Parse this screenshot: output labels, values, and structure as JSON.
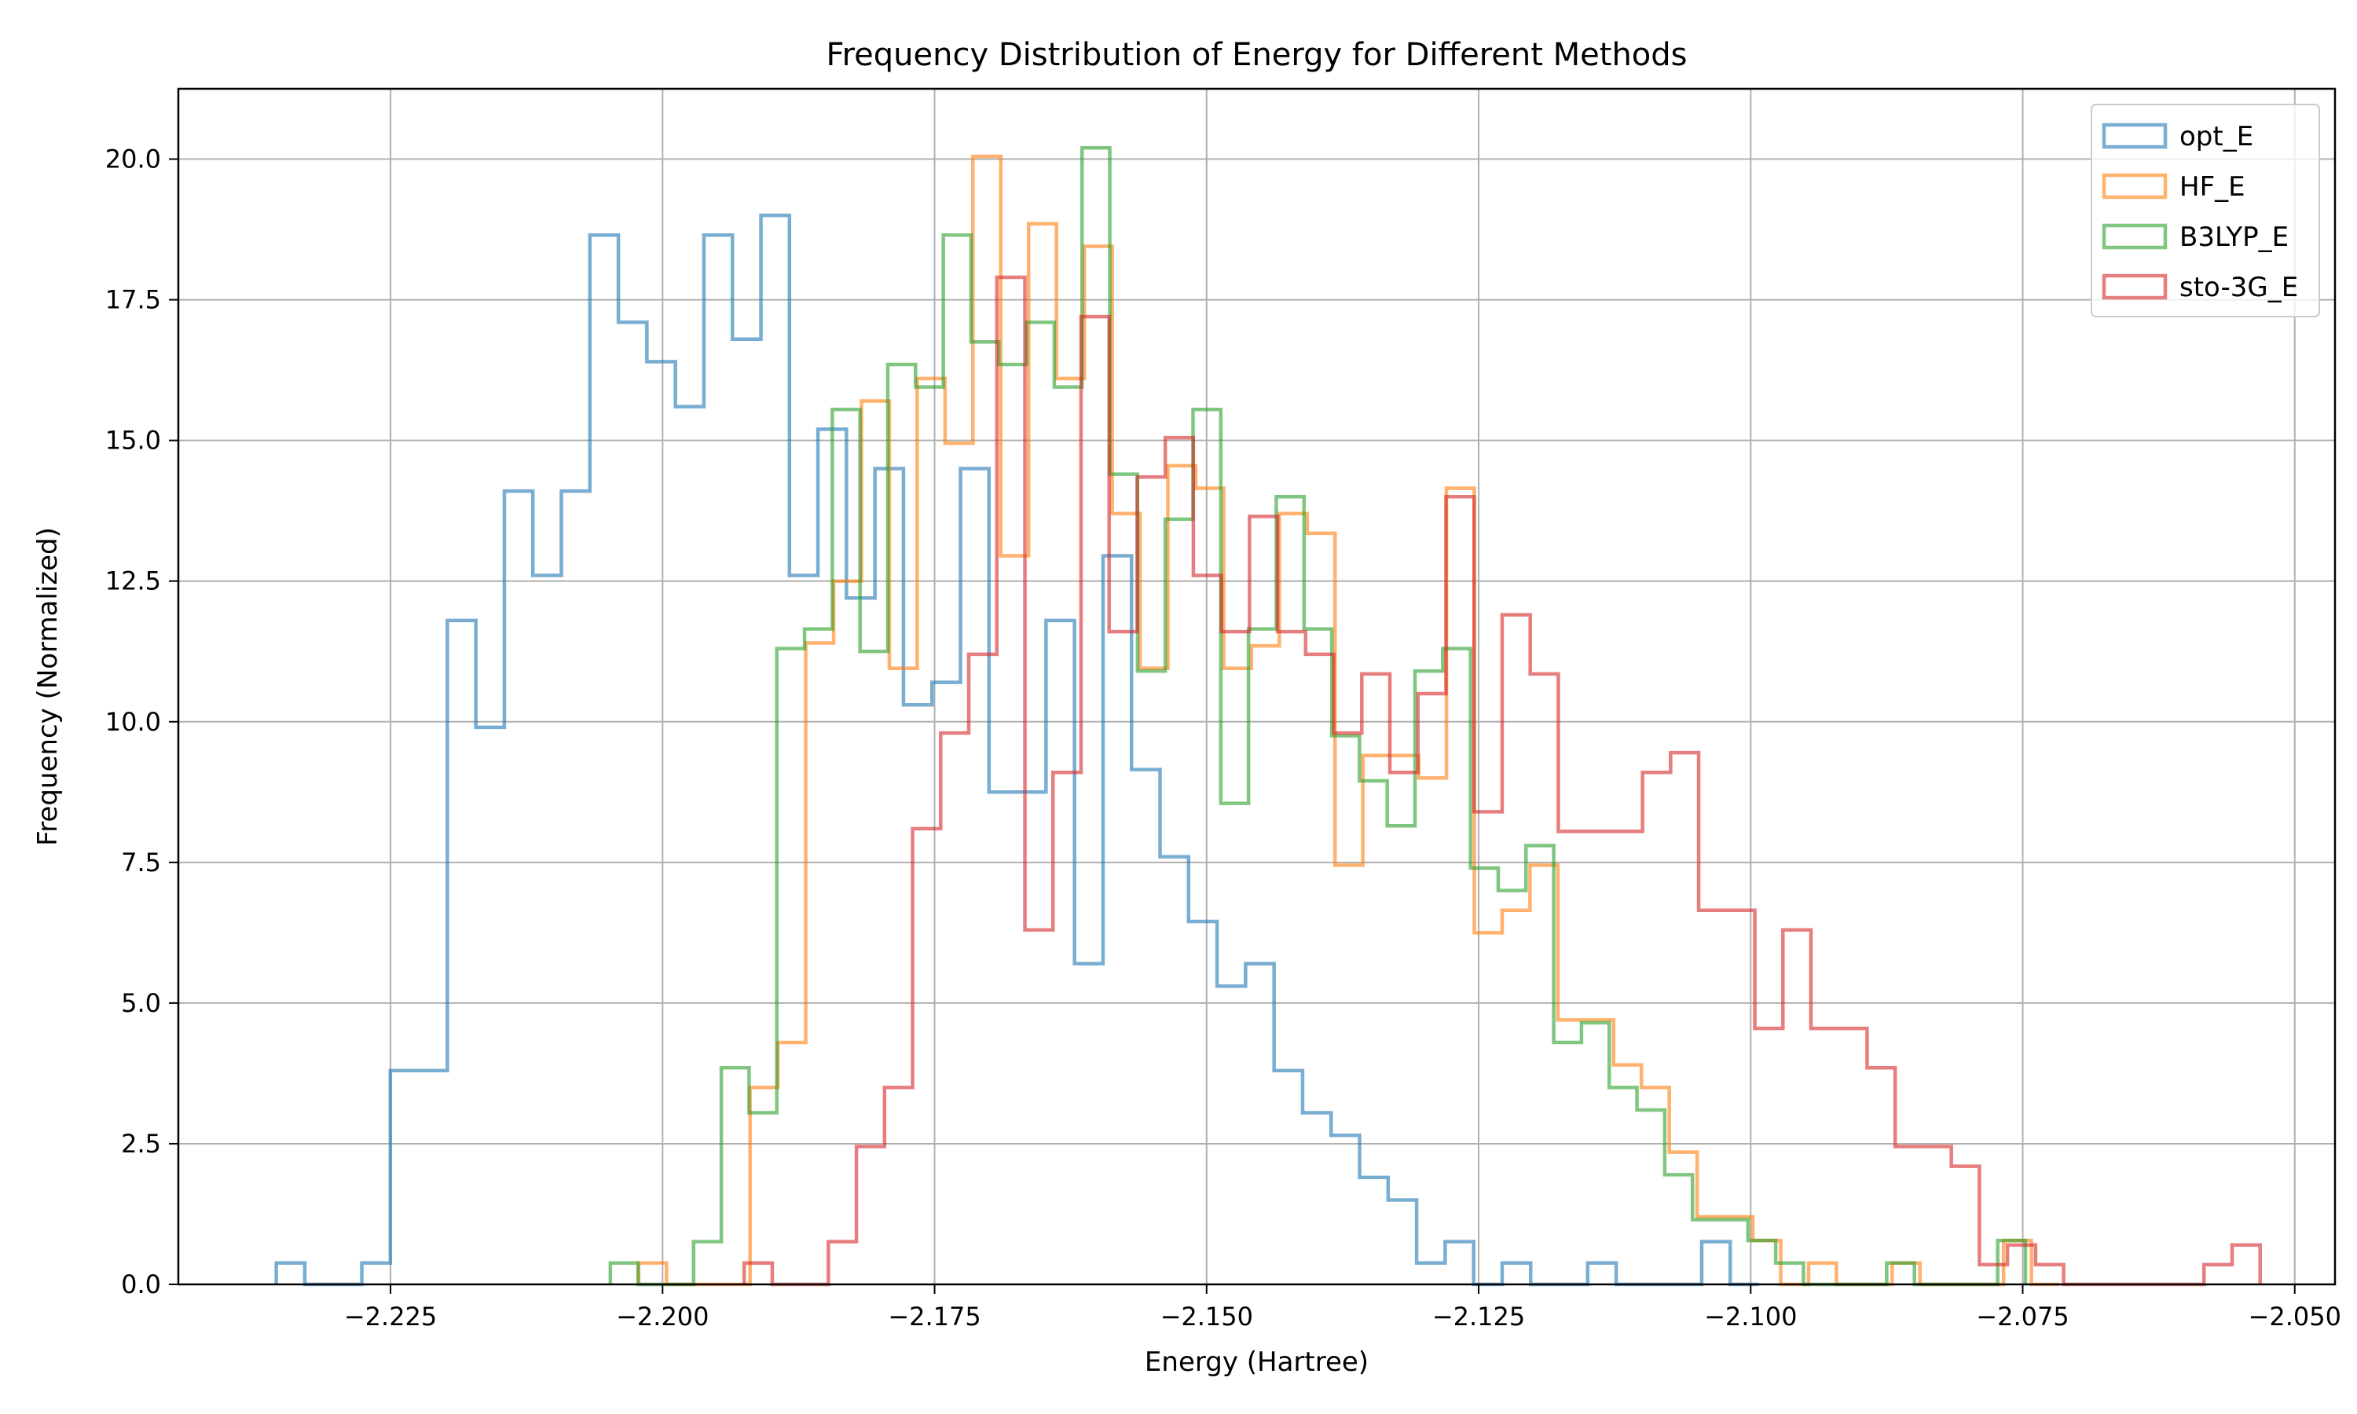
{
  "chart_data": {
    "type": "histogram",
    "title": "Frequency Distribution of Energy for Different Methods",
    "xlabel": "Energy (Hartree)",
    "ylabel": "Frequency (Normalized)",
    "xlim": [
      -2.2445,
      -2.0463
    ],
    "ylim": [
      0,
      21.25
    ],
    "xticks": [
      -2.225,
      -2.2,
      -2.175,
      -2.15,
      -2.125,
      -2.1,
      -2.075,
      -2.05
    ],
    "xtick_labels": [
      "−2.225",
      "−2.200",
      "−2.175",
      "−2.150",
      "−2.125",
      "−2.100",
      "−2.075",
      "−2.050"
    ],
    "yticks": [
      0,
      2.5,
      5,
      7.5,
      10,
      12.5,
      15,
      17.5,
      20
    ],
    "ytick_labels": [
      "0.0",
      "2.5",
      "5.0",
      "7.5",
      "10.0",
      "12.5",
      "15.0",
      "17.5",
      "20.0"
    ],
    "grid": true,
    "legend_position": "top-right",
    "series": [
      {
        "name": "opt_E",
        "color": "#1f77b4",
        "bin_start": -2.2355,
        "bin_width": 0.00262,
        "values": [
          0.38,
          0,
          0,
          0.38,
          3.8,
          3.8,
          11.8,
          9.9,
          14.1,
          12.6,
          14.1,
          18.65,
          17.1,
          16.4,
          15.6,
          18.65,
          16.8,
          19.0,
          12.6,
          15.2,
          12.2,
          14.5,
          10.3,
          10.7,
          14.5,
          8.75,
          8.75,
          11.8,
          5.7,
          12.95,
          9.15,
          7.6,
          6.45,
          5.3,
          5.7,
          3.8,
          3.05,
          2.65,
          1.9,
          1.5,
          0.38,
          0.76,
          0,
          0.38,
          0,
          0,
          0.38,
          0,
          0,
          0,
          0.76,
          0
        ]
      },
      {
        "name": "HF_E",
        "color": "#ff7f0e",
        "bin_start": -2.2022,
        "bin_width": 0.00256,
        "values": [
          0.38,
          0,
          0,
          0,
          3.5,
          4.3,
          11.4,
          12.5,
          15.7,
          10.95,
          16.1,
          14.95,
          20.05,
          12.95,
          18.85,
          16.1,
          18.45,
          13.7,
          10.95,
          14.55,
          14.15,
          10.95,
          11.35,
          13.7,
          13.35,
          7.45,
          9.4,
          9.4,
          9.0,
          14.15,
          6.25,
          6.65,
          7.45,
          4.7,
          4.7,
          3.9,
          3.5,
          2.35,
          1.2,
          1.2,
          0.78,
          0,
          0.38,
          0,
          0,
          0.38,
          0,
          0,
          0,
          0.78,
          0
        ]
      },
      {
        "name": "B3LYP_E",
        "color": "#2ca02c",
        "bin_start": -2.2048,
        "bin_width": 0.00255,
        "values": [
          0.38,
          0,
          0,
          0.76,
          3.85,
          3.05,
          11.3,
          11.65,
          15.55,
          11.25,
          16.35,
          15.95,
          18.65,
          16.75,
          16.35,
          17.1,
          15.95,
          20.2,
          14.4,
          10.9,
          13.6,
          15.55,
          8.55,
          11.65,
          14.0,
          11.65,
          9.75,
          8.95,
          8.15,
          10.9,
          11.3,
          7.4,
          7.0,
          7.8,
          4.3,
          4.65,
          3.5,
          3.1,
          1.95,
          1.15,
          1.15,
          0.78,
          0.38,
          0,
          0,
          0,
          0.38,
          0,
          0,
          0,
          0.78
        ]
      },
      {
        "name": "sto-3G_E",
        "color": "#d62728",
        "bin_start": -2.1925,
        "bin_width": 0.00258,
        "values": [
          0.38,
          0,
          0,
          0.76,
          2.45,
          3.5,
          8.1,
          9.8,
          11.2,
          17.9,
          6.3,
          9.1,
          17.2,
          11.6,
          14.35,
          15.05,
          12.6,
          11.6,
          13.65,
          11.6,
          11.2,
          9.8,
          10.85,
          9.1,
          10.5,
          14.0,
          8.4,
          11.9,
          10.85,
          8.05,
          8.05,
          8.05,
          9.1,
          9.45,
          6.65,
          6.65,
          4.55,
          6.3,
          4.55,
          4.55,
          3.85,
          2.45,
          2.45,
          2.1,
          0.35,
          0.7,
          0.35,
          0,
          0,
          0,
          0,
          0,
          0.35,
          0.7
        ]
      }
    ]
  }
}
